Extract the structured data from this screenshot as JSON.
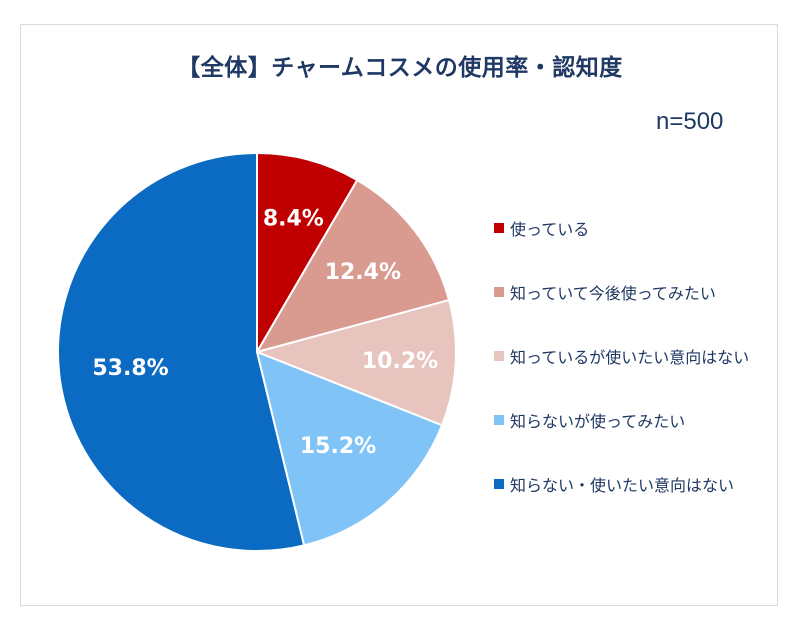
{
  "chart_data": {
    "type": "pie",
    "title": "【全体】チャームコスメの使用率・認知度",
    "note": "n=500",
    "categories": [
      "使っている",
      "知っていて今後使ってみたい",
      "知っているが使いたい意向はない",
      "知らないが使ってみたい",
      "知らない・使いたい意向はない"
    ],
    "values": [
      8.4,
      12.4,
      10.2,
      15.2,
      53.8
    ],
    "value_labels": [
      "8.4%",
      "12.4%",
      "10.2%",
      "15.2%",
      "53.8%"
    ],
    "colors": [
      "#c00000",
      "#d99a8f",
      "#e8c4be",
      "#7fc3f7",
      "#0b6bc2"
    ],
    "legend_position": "right"
  }
}
